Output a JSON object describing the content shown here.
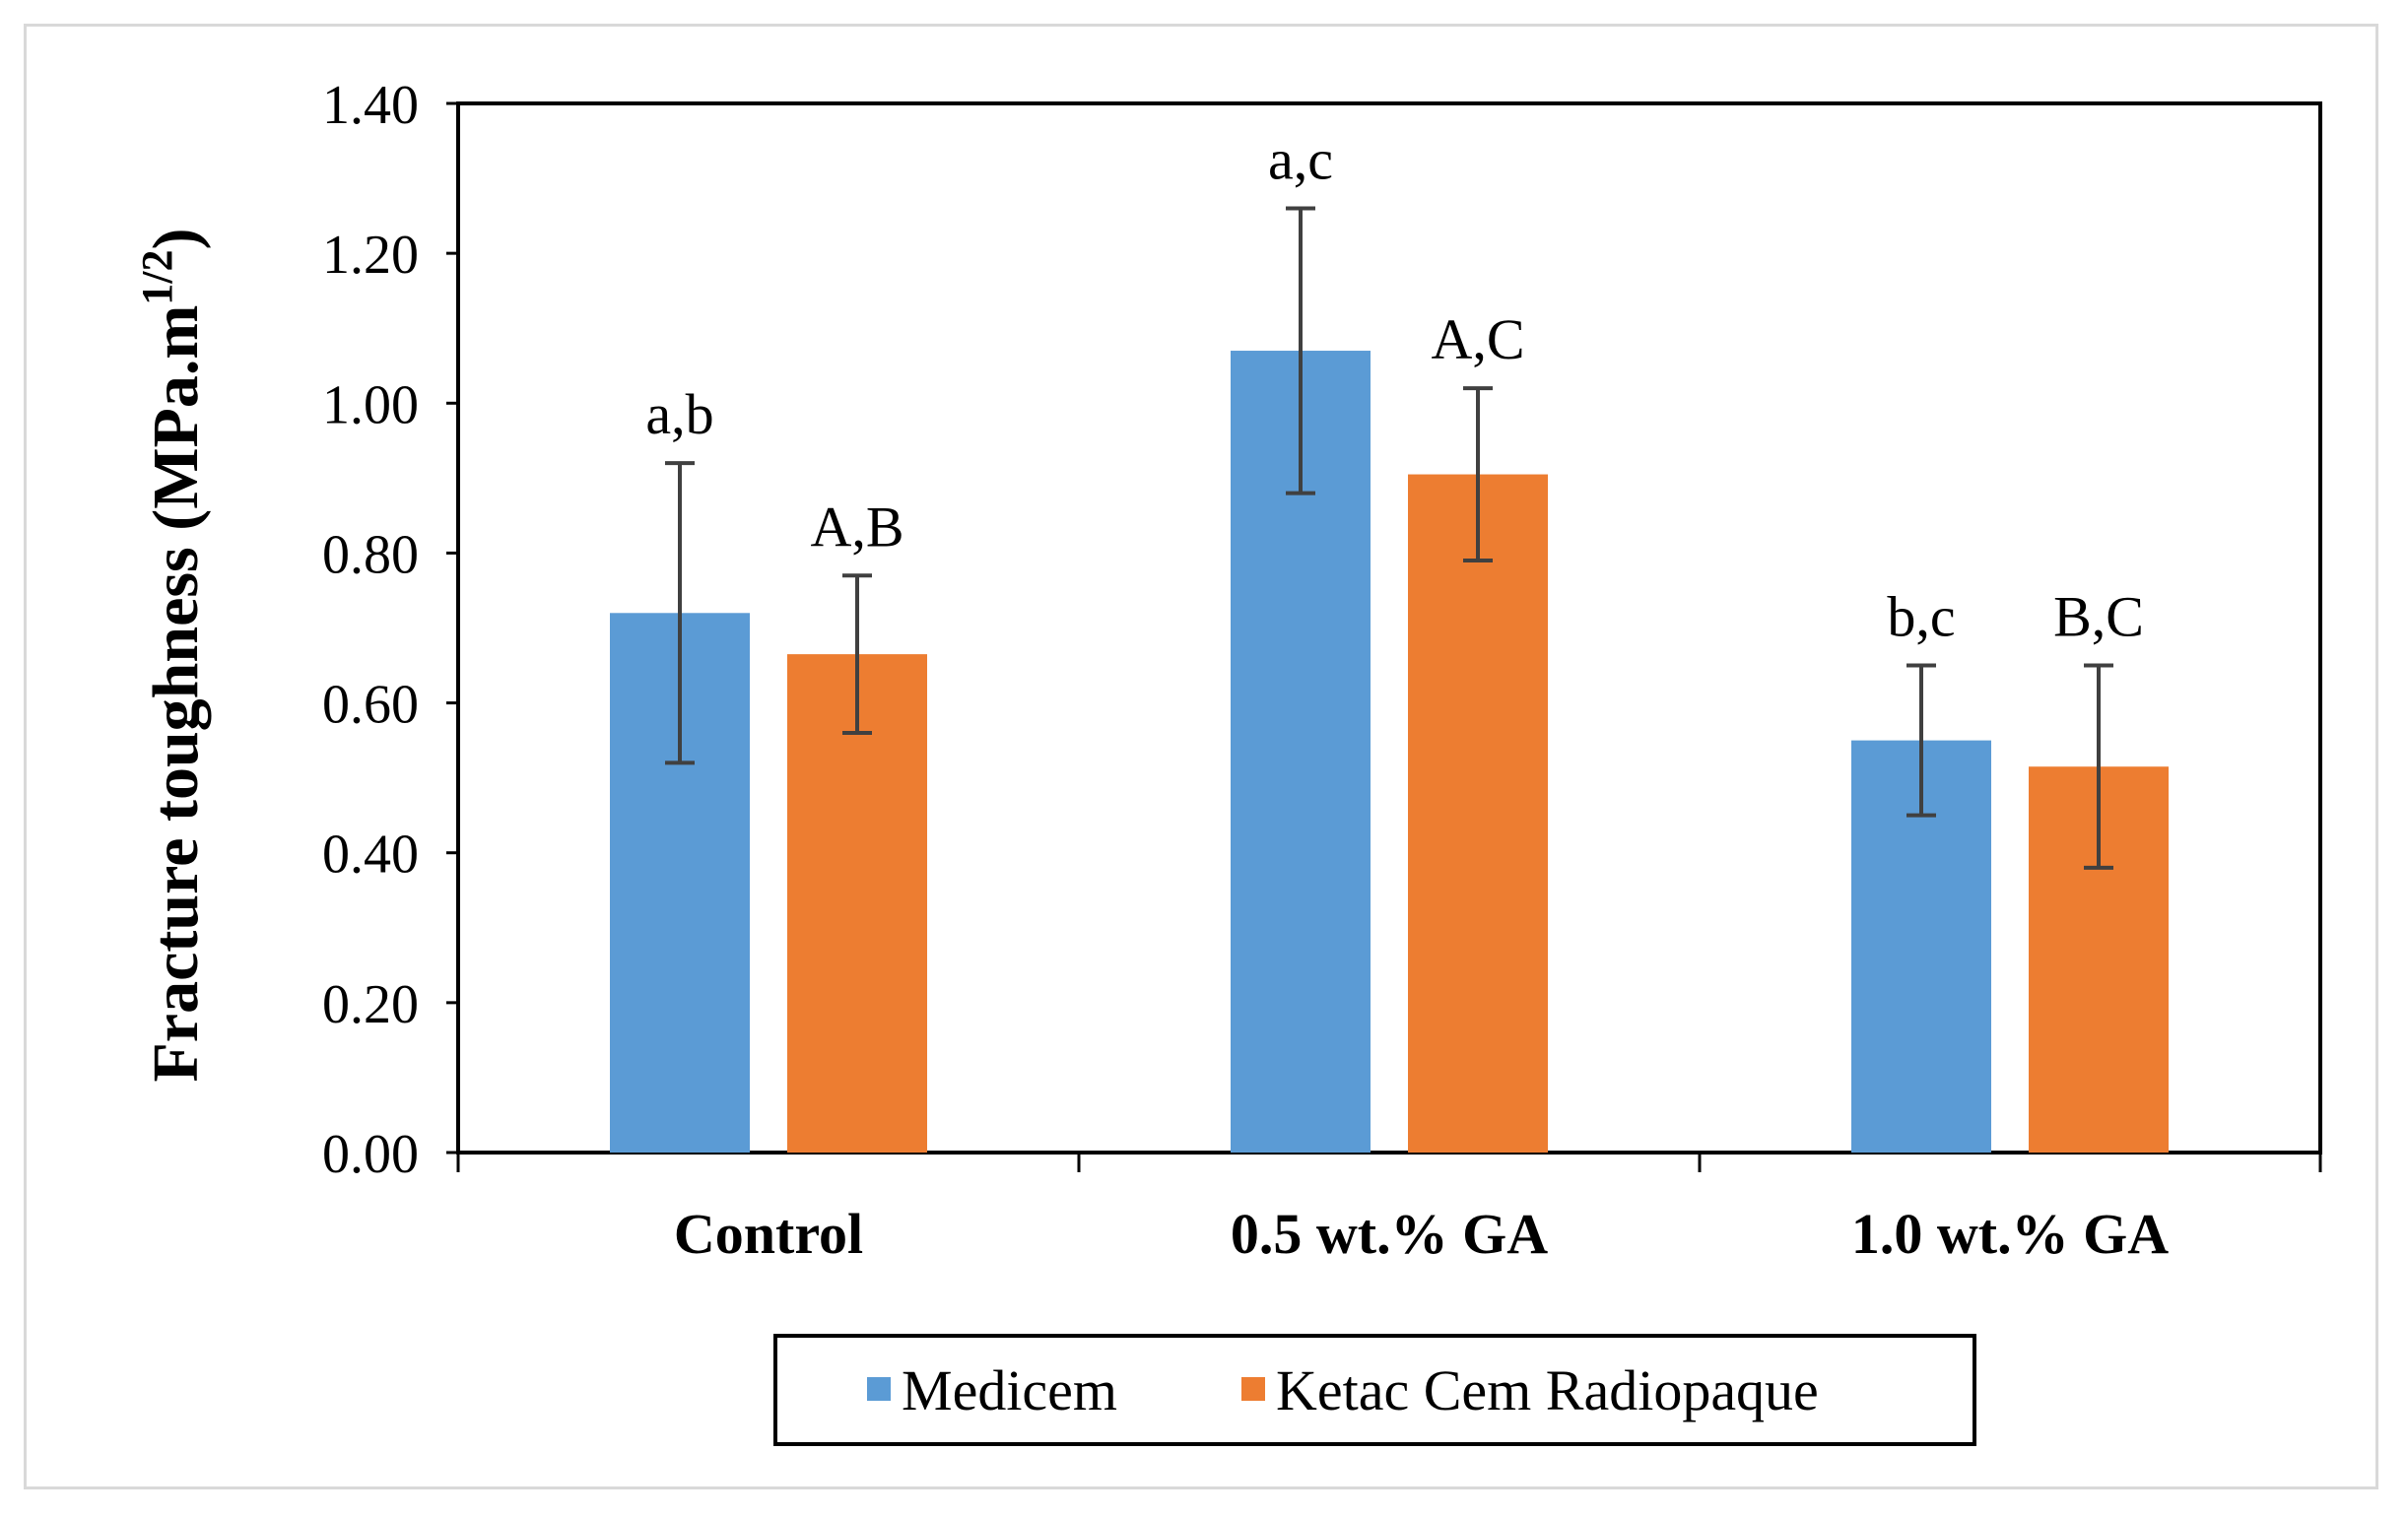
{
  "chart_data": {
    "type": "bar",
    "title": "",
    "xlabel": "",
    "ylabel": "Fracture toughness (MPa.m",
    "ylabel_superscript": "1/2",
    "ylabel_close": ")",
    "ylim": [
      0,
      1.4
    ],
    "yticks": [
      "0.00",
      "0.20",
      "0.40",
      "0.60",
      "0.80",
      "1.00",
      "1.20",
      "1.40"
    ],
    "categories": [
      "Control",
      "0.5 wt.% GA",
      "1.0 wt.% GA"
    ],
    "series": [
      {
        "name": "Medicem",
        "color": "#5b9bd5",
        "values": [
          0.72,
          1.07,
          0.55
        ],
        "error": [
          0.2,
          0.19,
          0.1
        ],
        "annotations": [
          "a,b",
          "a,c",
          "b,c"
        ]
      },
      {
        "name": "Ketac Cem Radiopaque",
        "color": "#ed7d31",
        "values": [
          0.665,
          0.905,
          0.515
        ],
        "error": [
          0.105,
          0.115,
          0.135
        ],
        "annotations": [
          "A,B",
          "A,C",
          "B,C"
        ]
      }
    ],
    "grid": false,
    "legend_position": "bottom"
  }
}
